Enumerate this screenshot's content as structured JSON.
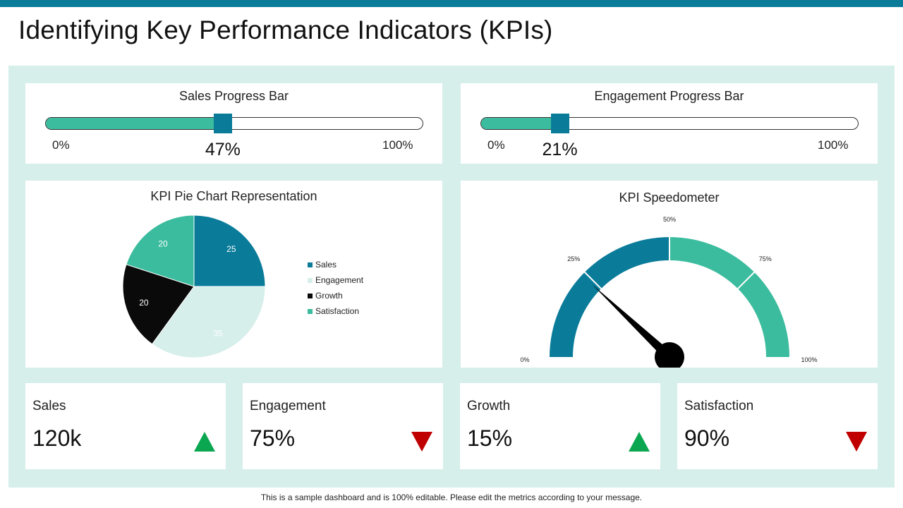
{
  "title": "Identifying Key Performance Indicators (KPIs)",
  "sales_progress": {
    "title": "Sales Progress Bar",
    "min_label": "0%",
    "max_label": "100%",
    "value_label": "47%",
    "value": 47
  },
  "engagement_progress": {
    "title": "Engagement Progress Bar",
    "min_label": "0%",
    "max_label": "100%",
    "value_label": "21%",
    "value": 21
  },
  "pie_title": "KPI Pie Chart Representation",
  "speedometer_title": "KPI Speedometer",
  "chart_data": [
    {
      "type": "pie",
      "title": "KPI Pie Chart Representation",
      "categories": [
        "Sales",
        "Engagement",
        "Growth",
        "Satisfaction"
      ],
      "values": [
        25,
        35,
        20,
        20
      ],
      "colors": [
        "#0a7c9a",
        "#d6efeb",
        "#0a0a0a",
        "#3bbc9e"
      ],
      "label_colors": [
        "#ffffff",
        "#ffffff",
        "#ffffff",
        "#ffffff"
      ],
      "legend_position": "right"
    },
    {
      "type": "gauge",
      "title": "KPI Speedometer",
      "range": [
        0,
        100
      ],
      "bands": [
        {
          "from": 0,
          "to": 50,
          "color": "#0a7c9a"
        },
        {
          "from": 50,
          "to": 100,
          "color": "#3bbc9e"
        }
      ],
      "tick_labels": [
        "0%",
        "25%",
        "50%",
        "75%",
        "100%"
      ],
      "tick_values": [
        0,
        25,
        50,
        75,
        100
      ],
      "needle_value": 24
    }
  ],
  "kpis": [
    {
      "label": "Sales",
      "value": "120k",
      "trend": "up",
      "trend_color": "#0aa650"
    },
    {
      "label": "Engagement",
      "value": "75%",
      "trend": "down",
      "trend_color": "#c00000"
    },
    {
      "label": "Growth",
      "value": "15%",
      "trend": "up",
      "trend_color": "#0aa650"
    },
    {
      "label": "Satisfaction",
      "value": "90%",
      "trend": "down",
      "trend_color": "#c00000"
    }
  ],
  "footer": "This is a sample dashboard and is 100% editable. Please edit the metrics according to your message."
}
